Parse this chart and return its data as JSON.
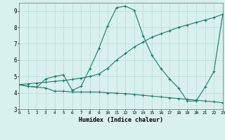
{
  "xlabel": "Humidex (Indice chaleur)",
  "bg_color": "#d8f0ee",
  "grid_color": "#b8dcd8",
  "line_color": "#1a7a6a",
  "xlim": [
    0,
    23
  ],
  "ylim": [
    3,
    9.5
  ],
  "xticks": [
    0,
    1,
    2,
    3,
    4,
    5,
    6,
    7,
    8,
    9,
    10,
    11,
    12,
    13,
    14,
    15,
    16,
    17,
    18,
    19,
    20,
    21,
    22,
    23
  ],
  "yticks": [
    3,
    4,
    5,
    6,
    7,
    8,
    9
  ],
  "line1_x": [
    0,
    1,
    2,
    3,
    4,
    5,
    6,
    7,
    8,
    9,
    10,
    11,
    12,
    13,
    14,
    15,
    16,
    17,
    18,
    19,
    20,
    21,
    22,
    23
  ],
  "line1_y": [
    4.5,
    4.4,
    4.35,
    4.3,
    4.1,
    4.1,
    4.05,
    4.05,
    4.05,
    4.05,
    4.0,
    3.98,
    3.95,
    3.9,
    3.85,
    3.8,
    3.75,
    3.7,
    3.65,
    3.6,
    3.55,
    3.5,
    3.45,
    3.4
  ],
  "line2_x": [
    0,
    1,
    2,
    3,
    4,
    5,
    6,
    7,
    8,
    9,
    10,
    11,
    12,
    13,
    14,
    15,
    16,
    17,
    18,
    19,
    20,
    21,
    22,
    23
  ],
  "line2_y": [
    4.5,
    4.55,
    4.6,
    4.65,
    4.7,
    4.75,
    4.82,
    4.9,
    5.0,
    5.15,
    5.5,
    6.0,
    6.4,
    6.8,
    7.1,
    7.4,
    7.6,
    7.8,
    8.0,
    8.15,
    8.3,
    8.45,
    8.6,
    8.8
  ],
  "line3_x": [
    0,
    1,
    2,
    3,
    4,
    5,
    6,
    7,
    8,
    9,
    10,
    11,
    12,
    13,
    14,
    15,
    16,
    17,
    18,
    19,
    20,
    21,
    22,
    23
  ],
  "line3_y": [
    4.5,
    4.4,
    4.35,
    4.85,
    5.0,
    5.1,
    4.15,
    4.4,
    5.5,
    6.7,
    8.1,
    9.2,
    9.3,
    9.05,
    7.5,
    6.3,
    5.5,
    4.85,
    4.3,
    3.5,
    3.5,
    4.35,
    5.3,
    8.8
  ]
}
